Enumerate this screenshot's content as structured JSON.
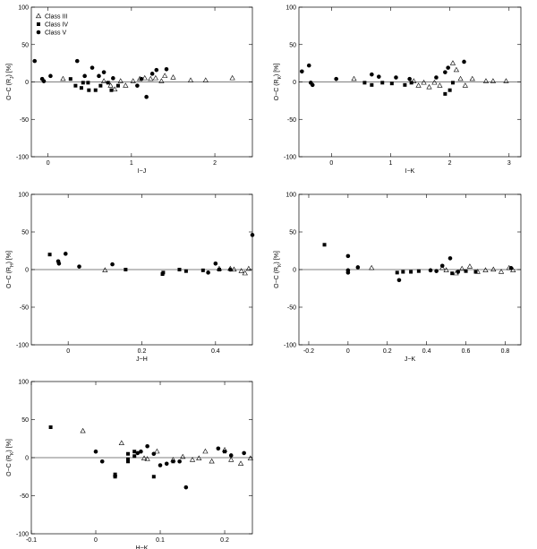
{
  "chart_data": [
    {
      "type": "scatter",
      "xlabel": "I−J",
      "ylabel": {
        "text": "O−C (R",
        "sub": "J",
        "tail": ") [%]"
      },
      "xlim": [
        -0.2,
        2.45
      ],
      "ylim": [
        -100,
        100
      ],
      "xticks": [
        0,
        1,
        2
      ],
      "yticks": [
        -100,
        -50,
        0,
        50,
        100
      ],
      "reference_line": 0,
      "legend": "upper left",
      "series": [
        {
          "name": "Class III",
          "marker": "triangle-open",
          "color": "#000",
          "x": [
            0.18,
            0.67,
            0.75,
            0.8,
            0.87,
            0.93,
            1.02,
            1.1,
            1.16,
            1.23,
            1.29,
            1.36,
            1.4,
            1.5,
            1.71,
            1.89,
            2.21
          ],
          "values": [
            4,
            1,
            -5,
            -10,
            1,
            -5,
            1,
            4,
            5,
            4,
            5,
            1,
            8,
            6,
            2,
            2,
            5
          ]
        },
        {
          "name": "Class IV",
          "marker": "square",
          "color": "#000",
          "x": [
            0.27,
            0.33,
            0.4,
            0.42,
            0.48,
            0.49,
            0.57,
            0.63,
            0.72,
            0.76,
            0.84
          ],
          "values": [
            4,
            -5,
            -8,
            -1,
            -1,
            -11,
            -11,
            -5,
            -1,
            -11,
            -5
          ]
        },
        {
          "name": "Class V",
          "marker": "circle",
          "color": "#000",
          "x": [
            -0.16,
            -0.07,
            -0.05,
            0.03,
            0.35,
            0.44,
            0.53,
            0.61,
            0.67,
            0.78,
            1.07,
            1.12,
            1.18,
            1.25,
            1.3,
            1.42
          ],
          "values": [
            28,
            4,
            1,
            8,
            28,
            8,
            19,
            8,
            13,
            5,
            -5,
            4,
            -20,
            11,
            16,
            17
          ]
        }
      ]
    },
    {
      "type": "scatter",
      "xlabel": "I−K",
      "ylabel": {
        "text": "O−C (R",
        "sub": "K",
        "tail": ") [%]"
      },
      "xlim": [
        -0.55,
        3.2
      ],
      "ylim": [
        -100,
        100
      ],
      "xticks": [
        0,
        1,
        2,
        3
      ],
      "yticks": [
        -100,
        -50,
        0,
        50,
        100
      ],
      "reference_line": 0,
      "series": [
        {
          "marker": "triangle-open",
          "color": "#000",
          "x": [
            0.38,
            1.39,
            1.47,
            1.56,
            1.65,
            1.74,
            1.83,
            2.05,
            2.11,
            2.18,
            2.26,
            2.38,
            2.61,
            2.73,
            2.95
          ],
          "values": [
            4,
            1,
            -5,
            -1,
            -7,
            -1,
            -5,
            25,
            16,
            4,
            -5,
            4,
            1,
            1,
            1
          ]
        },
        {
          "marker": "square",
          "color": "#000",
          "x": [
            0.56,
            0.68,
            0.86,
            1.02,
            1.24,
            1.35,
            1.92,
            2.0,
            2.05
          ],
          "values": [
            -1,
            -4,
            -1,
            -2,
            -4,
            -1,
            -16,
            -11,
            -1
          ]
        },
        {
          "marker": "circle",
          "color": "#000",
          "x": [
            -0.5,
            -0.38,
            -0.35,
            -0.32,
            0.08,
            0.68,
            0.8,
            1.09,
            1.32,
            1.77,
            1.92,
            1.97,
            2.24
          ],
          "values": [
            14,
            22,
            -1,
            -4,
            4,
            10,
            7,
            6,
            4,
            6,
            13,
            19,
            27
          ]
        }
      ]
    },
    {
      "type": "scatter",
      "xlabel": "J−H",
      "ylabel": {
        "text": "O−C (R",
        "sub": "H",
        "tail": ") [%]"
      },
      "xlim": [
        -0.1,
        0.5
      ],
      "ylim": [
        -100,
        100
      ],
      "xticks": [
        0,
        0.2,
        0.4
      ],
      "yticks": [
        -100,
        -50,
        0,
        50,
        100
      ],
      "reference_line": 0,
      "series": [
        {
          "marker": "triangle-open",
          "color": "#000",
          "x": [
            0.1,
            0.41,
            0.44,
            0.45,
            0.47,
            0.48,
            0.49
          ],
          "values": [
            -1,
            1,
            1,
            0,
            -2,
            -5,
            1
          ]
        },
        {
          "marker": "square",
          "color": "#000",
          "x": [
            -0.05,
            0.156,
            0.256,
            0.258,
            0.302,
            0.32,
            0.366,
            0.41
          ],
          "values": [
            20,
            0,
            -6,
            -4,
            0,
            -2,
            -1,
            0
          ]
        },
        {
          "marker": "circle",
          "color": "#000",
          "x": [
            -0.027,
            -0.025,
            -0.007,
            0.03,
            0.12,
            0.38,
            0.4,
            0.44,
            0.5
          ],
          "values": [
            11,
            8,
            21,
            4,
            7,
            -4,
            8,
            0,
            46
          ]
        }
      ]
    },
    {
      "type": "scatter",
      "xlabel": "J−K",
      "ylabel": {
        "text": "O−C (R",
        "sub": "K",
        "tail": ") [%]"
      },
      "xlim": [
        -0.25,
        0.88
      ],
      "ylim": [
        -100,
        100
      ],
      "xticks": [
        -0.2,
        0,
        0.2,
        0.4,
        0.6,
        0.8
      ],
      "yticks": [
        -100,
        -50,
        0,
        50,
        100
      ],
      "reference_line": 0,
      "series": [
        {
          "marker": "triangle-open",
          "color": "#000",
          "x": [
            0.12,
            0.48,
            0.5,
            0.55,
            0.58,
            0.62,
            0.66,
            0.7,
            0.74,
            0.78,
            0.82,
            0.84
          ],
          "values": [
            2,
            2,
            -1,
            -5,
            1,
            4,
            -3,
            -1,
            0,
            -3,
            2,
            -1
          ]
        },
        {
          "marker": "square",
          "color": "#000",
          "x": [
            -0.12,
            0.25,
            0.28,
            0.32,
            0.36,
            0.53,
            0.6,
            0.65
          ],
          "values": [
            33,
            -4,
            -3,
            -3,
            -2,
            -5,
            -2,
            -3
          ]
        },
        {
          "marker": "circle",
          "color": "#000",
          "x": [
            0,
            0,
            0,
            0.05,
            0.26,
            0.42,
            0.45,
            0.48,
            0.52,
            0.56,
            0.83
          ],
          "values": [
            18,
            -1,
            -4,
            3,
            -14,
            -1,
            -2,
            5,
            15,
            -3,
            2
          ]
        }
      ]
    },
    {
      "type": "scatter",
      "xlabel": "H−K",
      "ylabel": {
        "text": "O−C (R",
        "sub": "K",
        "tail": ") [%]"
      },
      "xlim": [
        -0.1,
        0.243
      ],
      "ylim": [
        -100,
        100
      ],
      "xticks": [
        -0.1,
        0,
        0.1,
        0.2
      ],
      "yticks": [
        -100,
        -50,
        0,
        50,
        100
      ],
      "reference_line": 0,
      "series": [
        {
          "marker": "triangle-open",
          "color": "#000",
          "x": [
            -0.02,
            0.04,
            0.075,
            0.08,
            0.095,
            0.12,
            0.135,
            0.15,
            0.16,
            0.17,
            0.18,
            0.2,
            0.21,
            0.225,
            0.24
          ],
          "values": [
            35,
            19,
            -1,
            -2,
            8,
            -3,
            1,
            -3,
            -1,
            8,
            -5,
            10,
            -3,
            -8,
            -1
          ]
        },
        {
          "marker": "square",
          "color": "#000",
          "x": [
            -0.07,
            0.03,
            0.03,
            0.05,
            0.05,
            0.05,
            0.06,
            0.06,
            0.09,
            0.12,
            0.2
          ],
          "values": [
            40,
            -22,
            -25,
            -5,
            5,
            -2,
            2,
            8,
            -25,
            -5,
            8
          ]
        },
        {
          "marker": "circle",
          "color": "#000",
          "x": [
            0,
            0.01,
            0.03,
            0.065,
            0.07,
            0.08,
            0.09,
            0.1,
            0.11,
            0.13,
            0.14,
            0.19,
            0.21,
            0.23
          ],
          "values": [
            8,
            -5,
            -24,
            6,
            8,
            15,
            5,
            -10,
            -8,
            -5,
            -39,
            12,
            3,
            6
          ]
        }
      ]
    }
  ]
}
